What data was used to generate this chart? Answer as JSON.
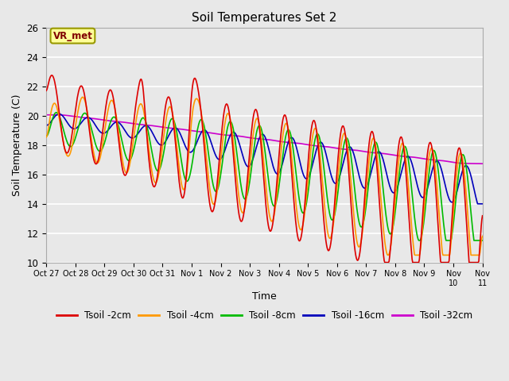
{
  "title": "Soil Temperatures Set 2",
  "xlabel": "Time",
  "ylabel": "Soil Temperature (C)",
  "ylim": [
    10,
    26
  ],
  "yticks": [
    10,
    12,
    14,
    16,
    18,
    20,
    22,
    24,
    26
  ],
  "plot_bg_color": "#e8e8e8",
  "fig_bg_color": "#e8e8e8",
  "annotation_text": "VR_met",
  "annotation_box_color": "#ffff99",
  "annotation_text_color": "#800000",
  "series_colors": {
    "Tsoil -2cm": "#dd0000",
    "Tsoil -4cm": "#ff9900",
    "Tsoil -8cm": "#00bb00",
    "Tsoil -16cm": "#0000bb",
    "Tsoil -32cm": "#cc00cc"
  },
  "x_tick_labels": [
    "Oct 27",
    "Oct 28",
    "Oct 29",
    "Oct 30",
    "Oct 31",
    "Nov 1",
    "Nov 2",
    "Nov 3",
    "Nov 4",
    "Nov 5",
    "Nov 6",
    "Nov 7",
    "Nov 8",
    "Nov 9",
    "Nov 10",
    "Nov 11"
  ],
  "line_width": 1.2
}
